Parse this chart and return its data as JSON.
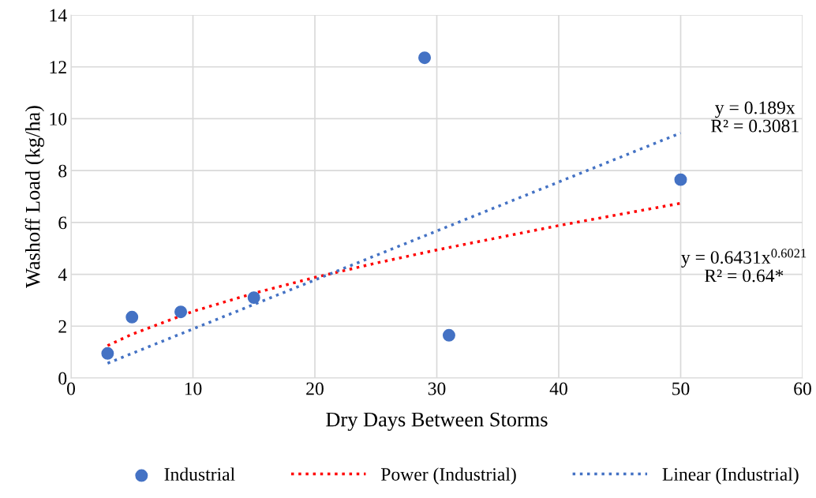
{
  "chart_data": {
    "type": "scatter",
    "xlabel": "Dry Days Between Storms",
    "ylabel": "Washoff Load (kg/ha)",
    "xlim": [
      0,
      60
    ],
    "xticks": [
      0,
      10,
      20,
      30,
      40,
      50,
      60
    ],
    "ylim": [
      0,
      14
    ],
    "yticks": [
      0,
      2,
      4,
      6,
      8,
      10,
      12,
      14
    ],
    "grid": true,
    "legend": "bottom",
    "series": [
      {
        "name": "Industrial",
        "color": "#4472c4",
        "marker": "circle",
        "x": [
          3,
          5,
          9,
          15,
          29,
          31,
          50
        ],
        "values": [
          0.95,
          2.35,
          2.55,
          3.1,
          12.35,
          1.65,
          7.65
        ]
      },
      {
        "name": "Power (Industrial)",
        "type": "line",
        "color": "#ff0000",
        "line_style": "dotted",
        "marker": "none",
        "x": [
          3,
          5,
          10,
          15,
          20,
          25,
          30,
          40,
          50
        ],
        "values": [
          1.25,
          1.69,
          2.57,
          3.27,
          3.88,
          4.43,
          4.94,
          5.88,
          6.74
        ]
      },
      {
        "name": "Linear (Industrial)",
        "type": "line",
        "color": "#4472c4",
        "line_style": "dotted",
        "marker": "none",
        "x": [
          3,
          50
        ],
        "values": [
          0.57,
          9.45
        ]
      }
    ],
    "annotations": [
      "y = 0.189x\nR² = 0.3081",
      "y = 0.6431x$^{0.6021}$\nR² = 0.64*"
    ]
  }
}
